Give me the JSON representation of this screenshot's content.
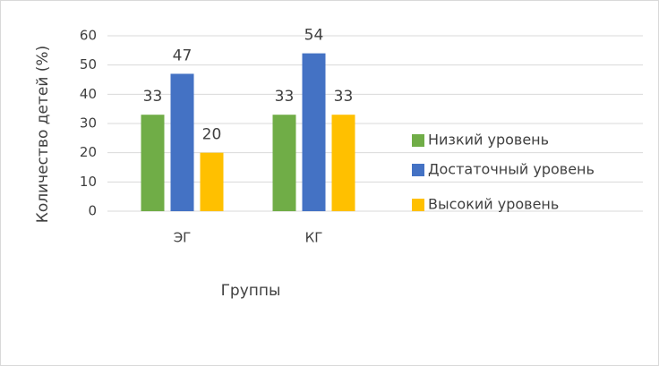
{
  "chart_data": {
    "type": "bar",
    "categories": [
      "ЭГ",
      "КГ"
    ],
    "series": [
      {
        "name": "Низкий уровень",
        "color": "#70ad47",
        "values": [
          33,
          33
        ]
      },
      {
        "name": "Достаточный уровень",
        "color": "#4472c4",
        "values": [
          47,
          54
        ]
      },
      {
        "name": "Высокий уровень",
        "color": "#ffc000",
        "values": [
          20,
          33
        ]
      }
    ],
    "ylim": [
      0,
      60
    ],
    "yticks": [
      0,
      10,
      20,
      30,
      40,
      50,
      60
    ],
    "grid": true,
    "y_label": "Количество детей (%)",
    "x_label": "Группы",
    "legend": "right"
  }
}
